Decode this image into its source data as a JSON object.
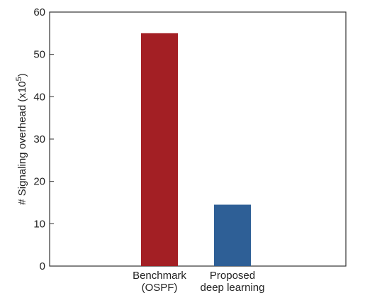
{
  "chart_data": {
    "type": "bar",
    "categories": [
      [
        "Benchmark",
        "(OSPF)"
      ],
      [
        "Proposed",
        "deep learning"
      ]
    ],
    "values": [
      55,
      14.5
    ],
    "colors": [
      "#a31f24",
      "#2e5f96"
    ],
    "ylabel": "# Signaling overhead (x10",
    "ylabel_superscript": "5",
    "ylabel_suffix": ")",
    "ylim": [
      0,
      60
    ],
    "yticks": [
      0,
      10,
      20,
      30,
      40,
      50,
      60
    ],
    "grid": false,
    "legend": "none"
  }
}
